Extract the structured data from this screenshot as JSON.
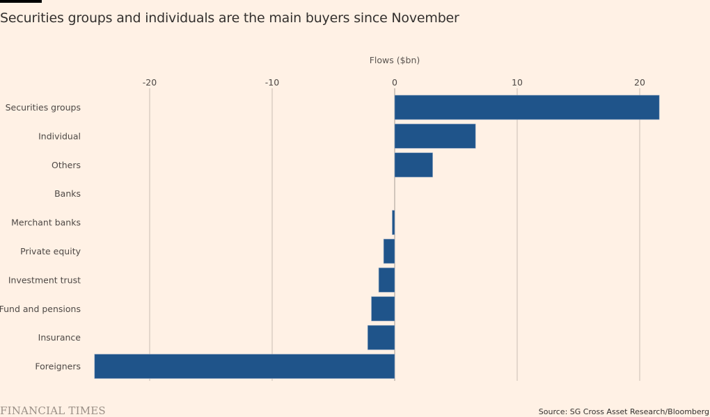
{
  "title": "Securities groups and individuals are the main buyers since November",
  "footer": {
    "logo": "FINANCIAL TIMES",
    "source": "Source: SG Cross Asset Research/Bloomberg"
  },
  "chart_data": {
    "type": "bar",
    "orientation": "horizontal",
    "title": "Securities groups and individuals are the main buyers since November",
    "xlabel": "Flows ($bn)",
    "ylabel": "",
    "xlim": [
      -25,
      25
    ],
    "xticks": [
      -20,
      -10,
      0,
      10,
      20
    ],
    "xtick_labels": [
      "-20",
      "-10",
      "0",
      "10",
      "20"
    ],
    "grid": true,
    "categories": [
      "Securities groups",
      "Individual",
      "Others",
      "Banks",
      "Merchant banks",
      "Private equity",
      "Investment trust",
      "Fund and pensions",
      "Insurance",
      "Foreigners"
    ],
    "values": [
      21.6,
      6.6,
      3.1,
      0.0,
      -0.2,
      -0.9,
      -1.3,
      -1.9,
      -2.2,
      -24.5
    ],
    "bar_color": "#1f548a",
    "source": "Source: SG Cross Asset Research/Bloomberg"
  }
}
